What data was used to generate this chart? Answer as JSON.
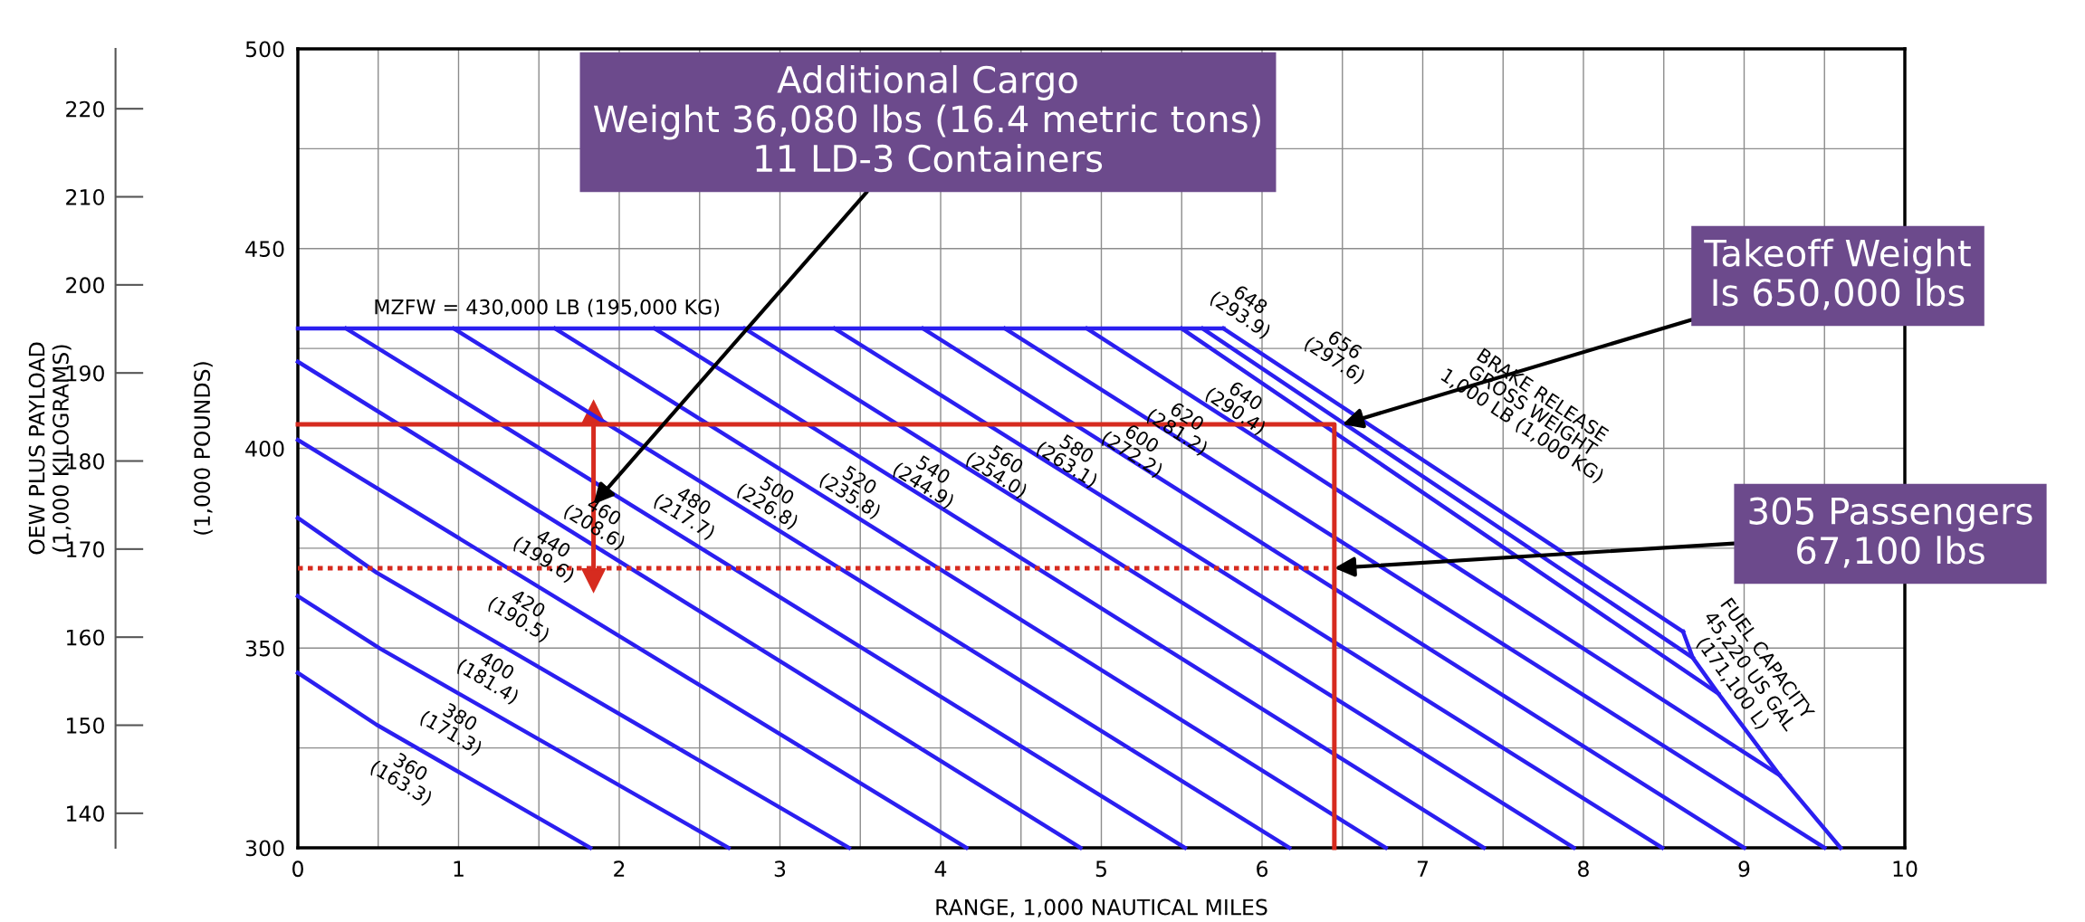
{
  "chart_data": {
    "type": "line",
    "xlabel": "RANGE, 1,000 NAUTICAL MILES",
    "ylabel": "(1,000 POUNDS)",
    "y2label": "OEW PLUS PAYLOAD\n(1,000 KILOGRAMS)",
    "legend_title": "BRAKE RELEASE\nGROSS WEIGHT\n1,000 LB (1,000 KG)",
    "xlim": [
      0,
      10
    ],
    "ylim": [
      300,
      500
    ],
    "y2lim": [
      136.08,
      226.8
    ],
    "xticks": [
      0,
      {
        "value": 0.5,
        "label": null
      },
      1,
      {
        "value": 1.5,
        "label": null
      },
      2,
      {
        "value": 2.5,
        "label": null
      },
      3,
      {
        "value": 3.5,
        "label": null
      },
      4,
      {
        "value": 4.5,
        "label": null
      },
      5,
      {
        "value": 5.5,
        "label": null
      },
      6,
      {
        "value": 6.5,
        "label": null
      },
      7,
      {
        "value": 7.5,
        "label": null
      },
      8,
      {
        "value": 8.5,
        "label": null
      },
      9,
      {
        "value": 9.5,
        "label": null
      },
      10
    ],
    "yticks": [
      300,
      {
        "value": 325,
        "label": null
      },
      350,
      {
        "value": 375,
        "label": null
      },
      400,
      {
        "value": 425,
        "label": null
      },
      450,
      {
        "value": 475,
        "label": null
      },
      500
    ],
    "y2ticks": [
      140,
      150,
      160,
      170,
      180,
      190,
      200,
      210,
      220
    ],
    "grid": true,
    "series": [
      {
        "name": "360\n(163.3)",
        "color": "#2b1ff0",
        "x": [
          0,
          0.49,
          1.82
        ],
        "values": [
          343.8,
          330.8,
          300
        ]
      },
      {
        "name": "380\n(171.3)",
        "color": "#2b1ff0",
        "x": [
          0,
          0.51,
          2.68
        ],
        "values": [
          363,
          349.9,
          300
        ]
      },
      {
        "name": "400\n(181.4)",
        "color": "#2b1ff0",
        "x": [
          0,
          0.49,
          3.43
        ],
        "values": [
          382.6,
          368.9,
          300
        ]
      },
      {
        "name": "420\n(190.5)",
        "color": "#2b1ff0",
        "x": [
          0,
          4.16
        ],
        "values": [
          402.1,
          300
        ]
      },
      {
        "name": "440\n(199.6)",
        "color": "#2b1ff0",
        "x": [
          0,
          4.87
        ],
        "values": [
          421.7,
          300
        ]
      },
      {
        "name": "460\n(208.6)",
        "color": "#2b1ff0",
        "x": [
          0.3,
          5.52
        ],
        "values": [
          430,
          300
        ]
      },
      {
        "name": "480\n(217.7)",
        "color": "#2b1ff0",
        "x": [
          0.97,
          6.17
        ],
        "values": [
          430,
          300
        ]
      },
      {
        "name": "500\n(226.8)",
        "color": "#2b1ff0",
        "x": [
          1.6,
          6.77
        ],
        "values": [
          430,
          300
        ]
      },
      {
        "name": "520\n(235.8)",
        "color": "#2b1ff0",
        "x": [
          2.22,
          7.38
        ],
        "values": [
          430,
          300
        ]
      },
      {
        "name": "540\n(244.9)",
        "color": "#2b1ff0",
        "x": [
          2.78,
          7.94
        ],
        "values": [
          430,
          300
        ]
      },
      {
        "name": "560\n(254.0)",
        "color": "#2b1ff0",
        "x": [
          3.34,
          8.49
        ],
        "values": [
          430,
          300
        ]
      },
      {
        "name": "580\n(263.1)",
        "color": "#2b1ff0",
        "x": [
          3.89,
          9.0
        ],
        "values": [
          430,
          300
        ]
      },
      {
        "name": "600\n(272.2)",
        "color": "#2b1ff0",
        "x": [
          4.4,
          9.5
        ],
        "values": [
          430,
          300
        ]
      },
      {
        "name": "620\n(281.2)",
        "color": "#2b1ff0",
        "x": [
          4.91,
          9.22
        ],
        "values": [
          430,
          318.2
        ]
      },
      {
        "name": "640\n(290.4)",
        "color": "#2b1ff0",
        "x": [
          5.5,
          8.84
        ],
        "values": [
          430,
          338.6
        ]
      },
      {
        "name": "648\n(293.9)",
        "color": "#2b1ff0",
        "x": [
          5.63,
          8.68
        ],
        "values": [
          430,
          347.6
        ]
      },
      {
        "name": "656\n(297.6)",
        "color": "#2b1ff0",
        "x": [
          5.76,
          8.62
        ],
        "values": [
          430,
          354.1
        ]
      },
      {
        "name": "MZFW = 430,000 LB (195,000 KG)",
        "color": "#2b1ff0",
        "x": [
          0,
          5.76
        ],
        "values": [
          430,
          430
        ]
      },
      {
        "name": "FUEL CAPACITY\n45,220 US GAL\n(171,100 L)",
        "color": "#2b1ff0",
        "x": [
          8.62,
          8.68,
          8.84,
          9.22,
          9.6
        ],
        "values": [
          354.1,
          347.6,
          338.6,
          318.2,
          300
        ]
      },
      {
        "color": "#d62b1f",
        "x": [
          0,
          6.45,
          6.45
        ],
        "values": [
          406,
          406,
          300
        ]
      },
      {
        "color": "#d62b1f",
        "line_style": "dotted",
        "x": [
          0,
          6.45
        ],
        "values": [
          370,
          370
        ]
      },
      {
        "color": "#d62b1f",
        "x": [
          1.84,
          1.84
        ],
        "values": [
          370,
          406
        ]
      }
    ],
    "annotations": [
      {
        "text": "Additional Cargo\nWeight 36,080 lbs (16.4 metric tons)\n11 LD-3 Containers",
        "x": 1.84,
        "y": 386
      },
      {
        "text": "Takeoff Weight\nIs 650,000 lbs",
        "x": 6.5,
        "y": 406
      },
      {
        "text": "305 Passengers\n67,100 lbs",
        "x": 6.45,
        "y": 370
      }
    ]
  }
}
